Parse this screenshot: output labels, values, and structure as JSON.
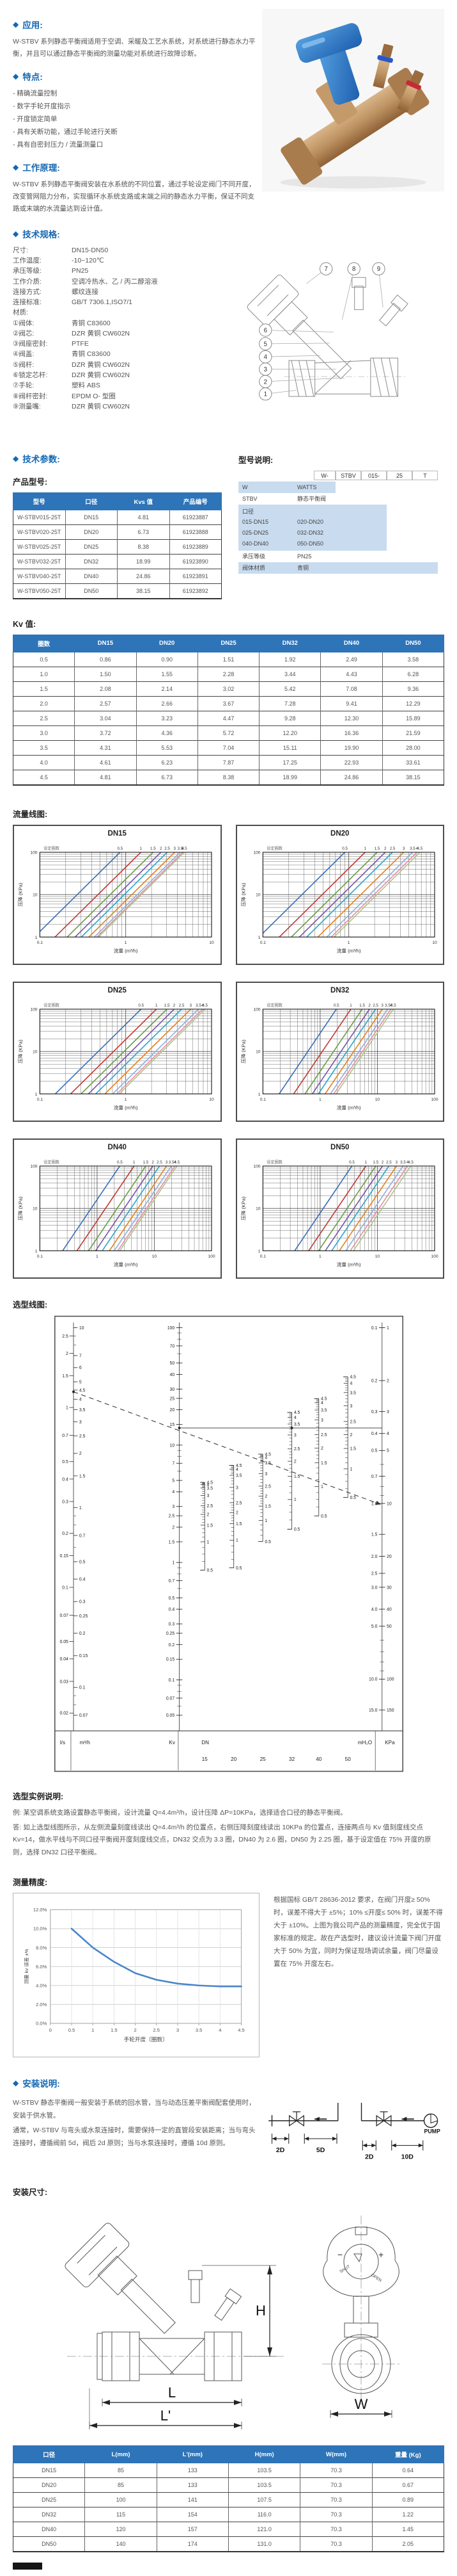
{
  "ui": {
    "bullet": "◆"
  },
  "colors": {
    "accent": "#1468b3",
    "table_header_bg": "#2e74b8",
    "model_block_bg": "#c9dcef",
    "flow_line_colors": [
      "#3a6fb5",
      "#c03a36",
      "#6f9c49",
      "#7757a4",
      "#2aa6c9",
      "#e2831f",
      "#8fb0da",
      "#e78fa7",
      "#abc68a"
    ]
  },
  "application": {
    "title": "应用:",
    "body": "W-STBV 系列静态平衡阀适用于空调、采暖及工艺水系统，对系统进行静态水力平衡，并且可以通过静态平衡阀的测量功能对系统进行故障诊断。"
  },
  "features": {
    "title": "特点:",
    "items": [
      "精确流量控制",
      "数字手轮开度指示",
      "开度锁定简单",
      "具有关断功能，通过手轮进行关断",
      "具有自密封压力 / 流量测量口"
    ]
  },
  "principle": {
    "title": "工作原理:",
    "body": "W-STBV 系列静态平衡阀安装在水系统的不同位置，通过手轮设定阀门不同开度，改变管网阻力分布，实现循环水系统支路或末端之间的静态水力平衡，保证不同支路或末端的水流量达到设计值。"
  },
  "specs": {
    "title": "技术规格:",
    "rows": [
      [
        "尺寸:",
        "DN15-DN50"
      ],
      [
        "工作温度:",
        "-10~120℃"
      ],
      [
        "承压等级:",
        "PN25"
      ],
      [
        "工作介质:",
        "空调冷热水、乙 / 丙二醇溶液"
      ],
      [
        "连接方式:",
        "螺纹连接"
      ],
      [
        "连接标准:",
        "GB/T 7306.1,ISO7/1"
      ],
      [
        "材质:",
        ""
      ],
      [
        "①阀体:",
        "青铜 C83600"
      ],
      [
        "②阀芯:",
        "DZR 黄铜 CW602N"
      ],
      [
        "③阀座密封:",
        "PTFE"
      ],
      [
        "④阀盖:",
        "青铜 C83600"
      ],
      [
        "⑤阀杆:",
        "DZR 黄铜 CW602N"
      ],
      [
        "⑥锁定芯杆:",
        "DZR 黄铜 CW602N"
      ],
      [
        "⑦手轮:",
        "塑料 ABS"
      ],
      [
        "⑧阀杆密封:",
        "EPDM O- 型圈"
      ],
      [
        "⑨测量嘴:",
        "DZR 黄铜 CW602N"
      ]
    ]
  },
  "structure_diagram": {
    "callouts": [
      "1",
      "2",
      "3",
      "4",
      "5",
      "6",
      "7",
      "8",
      "9"
    ]
  },
  "params": {
    "title": "技术参数:",
    "subtitle": "产品型号:",
    "headers": [
      "型号",
      "口径",
      "Kvs 值",
      "产品编号"
    ],
    "rows": [
      [
        "W-STBV015-25T",
        "DN15",
        "4.81",
        "61923887"
      ],
      [
        "W-STBV020-25T",
        "DN20",
        "6.73",
        "61923888"
      ],
      [
        "W-STBV025-25T",
        "DN25",
        "8.38",
        "61923889"
      ],
      [
        "W-STBV032-25T",
        "DN32",
        "18.99",
        "61923890"
      ],
      [
        "W-STBV040-25T",
        "DN40",
        "24.86",
        "61923891"
      ],
      [
        "W-STBV050-25T",
        "DN50",
        "38.15",
        "61923892"
      ]
    ]
  },
  "model_code": {
    "title": "型号说明:",
    "tokens": [
      "W-",
      "STBV",
      "015-",
      "25",
      "T"
    ],
    "rows": [
      {
        "label": "W",
        "value": "WATTS"
      },
      {
        "label": "STBV",
        "value": "静态平衡阀"
      },
      {
        "label": "口径",
        "pairs": [
          [
            "015-DN15",
            "020-DN20"
          ],
          [
            "025-DN25",
            "032-DN32"
          ],
          [
            "040-DN40",
            "050-DN50"
          ]
        ]
      },
      {
        "label": "承压等级",
        "value": "PN25"
      },
      {
        "label": "阀体材质",
        "value": "青铜"
      }
    ]
  },
  "kv_table": {
    "title": "Kv 值:",
    "headers": [
      "圈数",
      "DN15",
      "DN20",
      "DN25",
      "DN32",
      "DN40",
      "DN50"
    ],
    "rows": [
      [
        "0.5",
        "0.86",
        "0.90",
        "1.51",
        "1.92",
        "2.49",
        "3.58"
      ],
      [
        "1.0",
        "1.50",
        "1.55",
        "2.28",
        "3.44",
        "4.43",
        "6.28"
      ],
      [
        "1.5",
        "2.08",
        "2.14",
        "3.02",
        "5.42",
        "7.08",
        "9.36"
      ],
      [
        "2.0",
        "2.57",
        "2.66",
        "3.67",
        "7.28",
        "9.41",
        "12.29"
      ],
      [
        "2.5",
        "3.04",
        "3.23",
        "4.47",
        "9.28",
        "12.30",
        "15.89"
      ],
      [
        "3.0",
        "3.72",
        "4.36",
        "5.72",
        "12.20",
        "16.36",
        "21.59"
      ],
      [
        "3.5",
        "4.31",
        "5.53",
        "7.04",
        "15.11",
        "19.90",
        "28.00"
      ],
      [
        "4.0",
        "4.61",
        "6.23",
        "7.87",
        "17.25",
        "22.93",
        "33.61"
      ],
      [
        "4.5",
        "4.81",
        "6.73",
        "8.38",
        "18.99",
        "24.86",
        "38.15"
      ]
    ]
  },
  "flow_charts": {
    "title": "流量线图:",
    "legend_label": "设定圈数",
    "ylabel": "压降 (KPa)",
    "xlabel": "流量 (m³/h)",
    "settings": [
      "0.5",
      "1",
      "1.5",
      "2",
      "2.5",
      "3",
      "3.5",
      "4",
      "4.5"
    ],
    "ylim": [
      1,
      100
    ],
    "charts": [
      {
        "name": "DN15",
        "xmax": 10
      },
      {
        "name": "DN20",
        "xmax": 10
      },
      {
        "name": "DN25",
        "xmax": 10
      },
      {
        "name": "DN32",
        "xmax": 100
      },
      {
        "name": "DN40",
        "xmax": 100
      },
      {
        "name": "DN50",
        "xmax": 100
      }
    ]
  },
  "nomograph": {
    "title": "选型线图:",
    "kv_labels": [
      "100",
      "70",
      "50",
      "40",
      "30",
      "25",
      "20",
      "15",
      "10",
      "7",
      "5",
      "4",
      "3",
      "2.5",
      "2",
      "1.5",
      "1",
      "0.7",
      "0.5",
      "0.4",
      "0.3",
      "0.25",
      "0.2",
      "0.15",
      "0.1",
      "0.07",
      "0.05"
    ],
    "m3h_labels": [
      "10",
      "7",
      "6",
      "5",
      "4.5",
      "4",
      "3.5",
      "3",
      "2.5",
      "2",
      "1.5",
      "1",
      "0.7",
      "0.5",
      "0.4",
      "0.3",
      "0.25",
      "0.2",
      "0.15",
      "0.1",
      "0.07"
    ],
    "ls_labels": [
      "2.5",
      "2",
      "1.5",
      "1",
      "0.7",
      "0.5",
      "0.4",
      "0.3",
      "0.2",
      "0.15",
      "0.1",
      "0.07",
      "0.05",
      "0.04",
      "0.03",
      "0.02"
    ],
    "right_pairs": [
      [
        "0.1",
        "1"
      ],
      [
        "0.2",
        "2"
      ],
      [
        "0.3",
        "3"
      ],
      [
        "0.4",
        "4"
      ],
      [
        "0.5",
        "5"
      ],
      [
        "0.7",
        ""
      ],
      [
        "1.0",
        "10"
      ],
      [
        "1.5",
        ""
      ],
      [
        "2.0",
        "20"
      ],
      [
        "2.5",
        ""
      ],
      [
        "3.0",
        "30"
      ],
      [
        "4.0",
        "40"
      ],
      [
        "5.0",
        "50"
      ],
      [
        "10.0",
        "100"
      ],
      [
        "15.0",
        "150"
      ]
    ],
    "dn_turn_labels": [
      "0.5",
      "1",
      "1.5",
      "2",
      "2.5",
      "3",
      "3.5",
      "4",
      "4.5"
    ],
    "bottom_labels": {
      "ls": "l/s",
      "m3h": "m³/h",
      "kv": "Kv",
      "dn": "DN",
      "mh2o": "mH₂O",
      "kpa": "KPa"
    },
    "dn_sizes": [
      "15",
      "20",
      "25",
      "32",
      "40",
      "50"
    ],
    "example": {
      "q_m3h": 4.4,
      "kv": 14,
      "dp_mh2o": 1.0
    }
  },
  "selection_example": {
    "title": "选型实例说明:",
    "lines": [
      "例: 某空调系统支路设置静态平衡阀，设计流量 Q=4.4m³/h，设计压降 ΔP=10KPa，选择适合口径的静态平衡阀。",
      "答: 如上选型线图所示，从左侧流量刻度线读出 Q=4.4m³/h 的位置点，右侧压降刻度线读出 10KPa 的位置点，连接两点与 Kv 值刻度线交点 Kv=14，做水平线与不同口径平衡阀开度刻度线交点，DN32 交点为 3.3 圈，DN40 为 2.6 圈，DN50 为 2.25 圈，基于设定值在 75% 开度的原则，选择 DN32 口径平衡阀。"
    ]
  },
  "accuracy": {
    "title": "测量精度:",
    "ylabel": "测量 kv 误差 ±%",
    "xlabel": "手轮开度〔圈数〕",
    "yticks": [
      "0.0%",
      "2.0%",
      "4.0%",
      "6.0%",
      "8.0%",
      "10.0%",
      "12.0%"
    ],
    "xticks": [
      "0",
      "0.5",
      "1",
      "1.5",
      "2",
      "2.5",
      "3",
      "3.5",
      "4",
      "4.5"
    ],
    "curve_x": [
      0.5,
      1,
      1.5,
      2,
      2.5,
      3,
      3.5,
      4,
      4.5
    ],
    "curve_y": [
      10.0,
      8.0,
      6.5,
      5.3,
      4.6,
      4.2,
      4.0,
      3.9,
      3.9
    ],
    "note": "根据国标 GB/T 28636-2012 要求，在阀门开度≥ 50% 时，误差不得大于 ±5%；10% ≤开度≤ 50% 时，误差不得大于 ±10%。上图为我公司产品的测量精度，完全优于国家标准的规定。故在产选型时，建议设计流量下阀门开度大于 50% 为宜，同时为保证现场调试余量，阀门尽量设置在 75% 开度左右。"
  },
  "install": {
    "title": "安装说明:",
    "body1": "W-STBV 静态平衡阀一般安装于系统的回水管，当与动态压差平衡阀配套使用时，安装于供水管。",
    "body2": "通常，W-STBV 与弯头或水泵连接时，需要保持一定的直管段安装距离；当与弯头连接时，遵循阀前 5d，阀后 2d 原则；当与水泵连接时，遵循 10d 原则。",
    "labels": {
      "d1": "2D",
      "d2": "5D",
      "d3": "2D",
      "d4": "10D",
      "pump": "PUMP"
    }
  },
  "dimensions": {
    "title": "安装尺寸:",
    "labels": {
      "H": "H",
      "L": "L",
      "Lp": "L'",
      "W": "W",
      "minus": "−",
      "plus": "+",
      "shut": "SHUT",
      "open": "OPEN"
    },
    "headers": [
      "口径",
      "L(mm)",
      "L'(mm)",
      "H(mm)",
      "W(mm)",
      "重量 (Kg)"
    ],
    "rows": [
      [
        "DN15",
        "85",
        "133",
        "103.5",
        "70.3",
        "0.64"
      ],
      [
        "DN20",
        "85",
        "133",
        "103.5",
        "70.3",
        "0.67"
      ],
      [
        "DN25",
        "100",
        "141",
        "107.5",
        "70.3",
        "0.89"
      ],
      [
        "DN32",
        "115",
        "154",
        "116.0",
        "70.3",
        "1.22"
      ],
      [
        "DN40",
        "120",
        "157",
        "121.0",
        "70.3",
        "1.45"
      ],
      [
        "DN50",
        "140",
        "174",
        "131.0",
        "70.3",
        "2.05"
      ]
    ]
  }
}
